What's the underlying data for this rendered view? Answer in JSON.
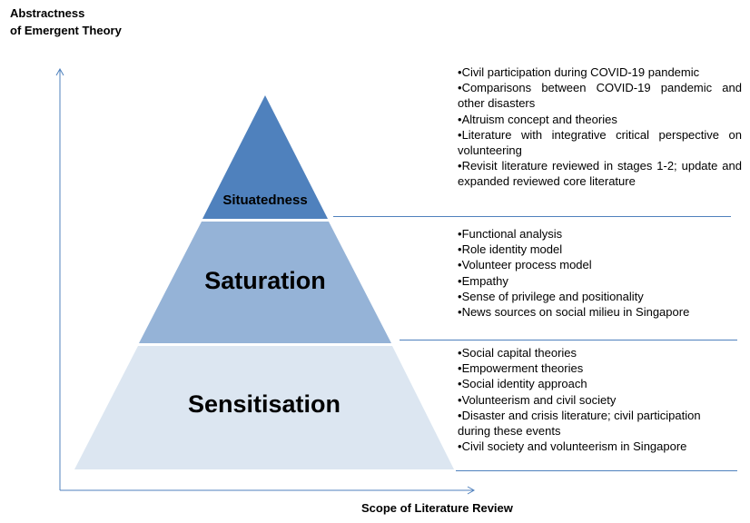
{
  "axes": {
    "y_label_line1": "Abstractness",
    "y_label_line2": "of Emergent Theory",
    "x_label": "Scope of Literature Review"
  },
  "colors": {
    "situatedness": "#4f81bd",
    "saturation": "#95b3d7",
    "sensitisation": "#dce6f1",
    "lines": "#4f81bd"
  },
  "tiers": [
    {
      "label": "Situatedness",
      "items": [
        "Civil participation during COVID-19 pandemic",
        "Comparisons between COVID-19 pandemic and other disasters",
        "Altruism concept and theories",
        "Literature with integrative critical perspective on volunteering",
        "Revisit literature reviewed in stages 1-2; update and expanded reviewed core literature"
      ]
    },
    {
      "label": "Saturation",
      "items": [
        "Functional analysis",
        "Role identity model",
        "Volunteer process model",
        "Empathy",
        "Sense of privilege and positionality",
        "News sources on social milieu in Singapore"
      ]
    },
    {
      "label": "Sensitisation",
      "items": [
        "Social capital theories",
        "Empowerment theories",
        "Social identity approach",
        "Volunteerism and civil society",
        "Disaster and crisis literature; civil participation during these events",
        "Civil society and volunteerism in Singapore"
      ]
    }
  ]
}
